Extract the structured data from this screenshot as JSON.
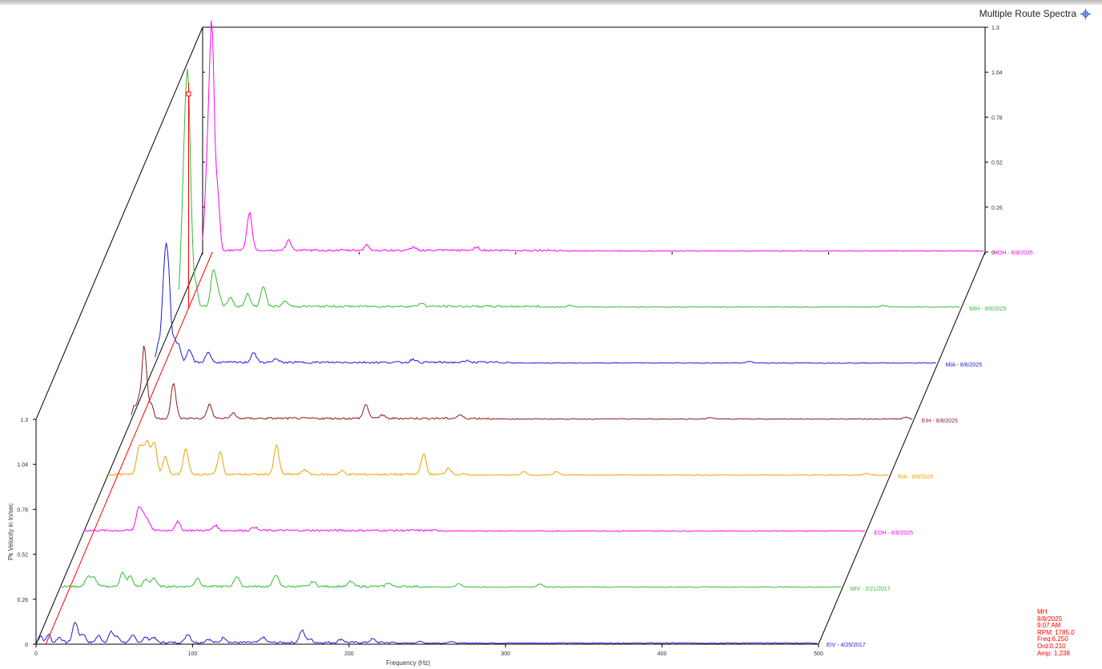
{
  "window": {
    "title": "Multiple Route Spectra",
    "title_icon": "crosshair-icon"
  },
  "colors": {
    "axis": "#000000",
    "tick_text": "#333333",
    "cursor": "#ff0000"
  },
  "chart_data": {
    "type": "line",
    "style": "waterfall-3d",
    "xlabel": "Frequency (Hz)",
    "ylabel": "Pk Velocity in In/sec",
    "x_ticks": [
      0,
      100,
      200,
      300,
      400,
      500
    ],
    "xlim": [
      0,
      500
    ],
    "y_ticks": [
      "0",
      "0.26",
      "0.52",
      "0.78",
      "1.04",
      "1.3"
    ],
    "ylim": [
      0,
      1.3
    ],
    "legend": "labels at right end of each trace",
    "series": [
      {
        "name": "EIV - 4/25/2017",
        "color": "#1a1adf",
        "peaks": [
          [
            3,
            0.04
          ],
          [
            8,
            0.05
          ],
          [
            15,
            0.03
          ],
          [
            25,
            0.12
          ],
          [
            30,
            0.05
          ],
          [
            40,
            0.04
          ],
          [
            48,
            0.06
          ],
          [
            52,
            0.03
          ],
          [
            62,
            0.04
          ],
          [
            70,
            0.03
          ],
          [
            75,
            0.03
          ],
          [
            97,
            0.05
          ],
          [
            110,
            0.02
          ],
          [
            120,
            0.03
          ],
          [
            145,
            0.03
          ],
          [
            170,
            0.07
          ],
          [
            175,
            0.02
          ],
          [
            195,
            0.02
          ],
          [
            215,
            0.02
          ],
          [
            245,
            0.01
          ],
          [
            265,
            0.01
          ]
        ]
      },
      {
        "name": "MIV - 2/21/2017",
        "color": "#33bb33",
        "peaks": [
          [
            18,
            0.06
          ],
          [
            22,
            0.05
          ],
          [
            40,
            0.08
          ],
          [
            45,
            0.06
          ],
          [
            55,
            0.04
          ],
          [
            60,
            0.05
          ],
          [
            88,
            0.05
          ],
          [
            113,
            0.06
          ],
          [
            138,
            0.07
          ],
          [
            162,
            0.03
          ],
          [
            186,
            0.03
          ],
          [
            210,
            0.02
          ],
          [
            255,
            0.02
          ],
          [
            307,
            0.02
          ]
        ]
      },
      {
        "name": "EOH - 8/8/2025",
        "color": "#ff00ff",
        "peaks": [
          [
            35,
            0.12
          ],
          [
            38,
            0.08
          ],
          [
            41,
            0.05
          ],
          [
            60,
            0.05
          ],
          [
            84,
            0.03
          ],
          [
            109,
            0.02
          ]
        ]
      },
      {
        "name": "EIA - 8/8/2025",
        "color": "#f0a000",
        "peaks": [
          [
            20,
            0.14
          ],
          [
            23,
            0.12
          ],
          [
            26,
            0.16
          ],
          [
            30,
            0.18
          ],
          [
            37,
            0.1
          ],
          [
            50,
            0.15
          ],
          [
            72,
            0.13
          ],
          [
            108,
            0.17
          ],
          [
            126,
            0.03
          ],
          [
            150,
            0.02
          ],
          [
            202,
            0.12
          ],
          [
            218,
            0.04
          ],
          [
            266,
            0.02
          ],
          [
            287,
            0.02
          ],
          [
            485,
            0.01
          ]
        ]
      },
      {
        "name": "EIH - 8/8/2025",
        "color": "#8b1a1a",
        "peaks": [
          [
            2,
            0.07
          ],
          [
            5,
            0.12
          ],
          [
            8,
            0.38
          ],
          [
            10,
            0.15
          ],
          [
            13,
            0.08
          ],
          [
            27,
            0.2
          ],
          [
            50,
            0.08
          ],
          [
            65,
            0.03
          ],
          [
            150,
            0.08
          ],
          [
            160,
            0.02
          ],
          [
            210,
            0.02
          ],
          [
            370,
            0.01
          ],
          [
            495,
            0.01
          ]
        ]
      },
      {
        "name": "MIA - 8/8/2025",
        "color": "#1a1adf",
        "peaks": [
          [
            2,
            0.1
          ],
          [
            5,
            0.3
          ],
          [
            7,
            0.52
          ],
          [
            9,
            0.38
          ],
          [
            12,
            0.12
          ],
          [
            15,
            0.1
          ],
          [
            22,
            0.07
          ],
          [
            34,
            0.06
          ],
          [
            63,
            0.06
          ],
          [
            77,
            0.02
          ],
          [
            165,
            0.02
          ],
          [
            200,
            0.01
          ],
          [
            380,
            0.01
          ]
        ]
      },
      {
        "name": "MIH - 8/8/2025",
        "color": "#33bb33",
        "peaks": [
          [
            2,
            0.35
          ],
          [
            4,
            0.8
          ],
          [
            6,
            1.05
          ],
          [
            8,
            0.35
          ],
          [
            11,
            0.12
          ],
          [
            22,
            0.2
          ],
          [
            25,
            0.08
          ],
          [
            33,
            0.05
          ],
          [
            44,
            0.07
          ],
          [
            54,
            0.12
          ],
          [
            68,
            0.03
          ],
          [
            155,
            0.02
          ],
          [
            250,
            0.01
          ],
          [
            450,
            0.01
          ]
        ]
      },
      {
        "name": "MOH - 8/8/2025",
        "color": "#ff00ff",
        "peaks": [
          [
            2,
            0.25
          ],
          [
            4,
            0.6
          ],
          [
            6,
            1.1
          ],
          [
            8,
            0.3
          ],
          [
            10,
            0.25
          ],
          [
            30,
            0.22
          ],
          [
            55,
            0.06
          ],
          [
            105,
            0.03
          ],
          [
            135,
            0.02
          ],
          [
            175,
            0.02
          ]
        ]
      }
    ]
  },
  "cursor_readout": {
    "line1": "MH",
    "line2": "8/8/2025",
    "line3": "9:07 AM",
    "line4": "RPM: 1785.0",
    "line5": "Freq:6.250",
    "line6": "Ord:0.210",
    "line7": "Amp: 1.238"
  }
}
